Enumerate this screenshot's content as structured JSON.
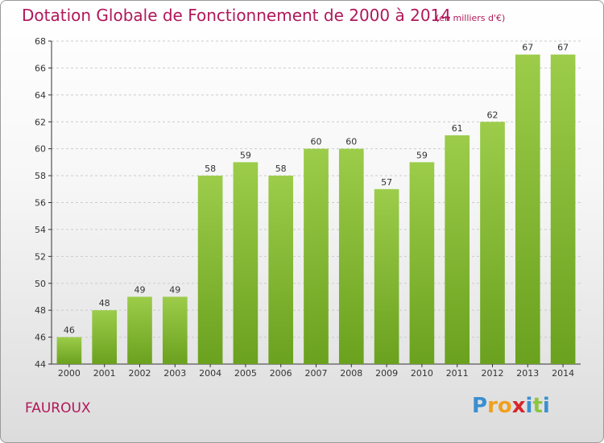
{
  "chart_data": {
    "type": "bar",
    "title": "Dotation Globale de Fonctionnement de 2000 à 2014",
    "subtitle": "(en milliers d'€)",
    "categories": [
      "2000",
      "2001",
      "2002",
      "2003",
      "2004",
      "2005",
      "2006",
      "2007",
      "2008",
      "2009",
      "2010",
      "2011",
      "2012",
      "2013",
      "2014"
    ],
    "values": [
      46,
      48,
      49,
      49,
      58,
      59,
      58,
      60,
      60,
      57,
      59,
      61,
      62,
      67,
      67
    ],
    "ylim": [
      44,
      68
    ],
    "yticks": [
      44,
      46,
      48,
      50,
      52,
      54,
      56,
      58,
      60,
      62,
      64,
      66,
      68
    ],
    "grid": true,
    "bar_color_top": "#9ccc4a",
    "bar_color_bottom": "#6aa11e",
    "xlabel": "",
    "ylabel": ""
  },
  "commune": "FAUROUX",
  "brand": {
    "letters": [
      "P",
      "r",
      "o",
      "x",
      "i",
      "t",
      "i"
    ],
    "colors": [
      "#3a8fd0",
      "#f0a020",
      "#f0a020",
      "#d8252a",
      "#3a8fd0",
      "#8cc63f",
      "#3a8fd0"
    ]
  },
  "colors": {
    "title": "#b0185a",
    "axis": "#333333",
    "grid": "#cccccc"
  }
}
